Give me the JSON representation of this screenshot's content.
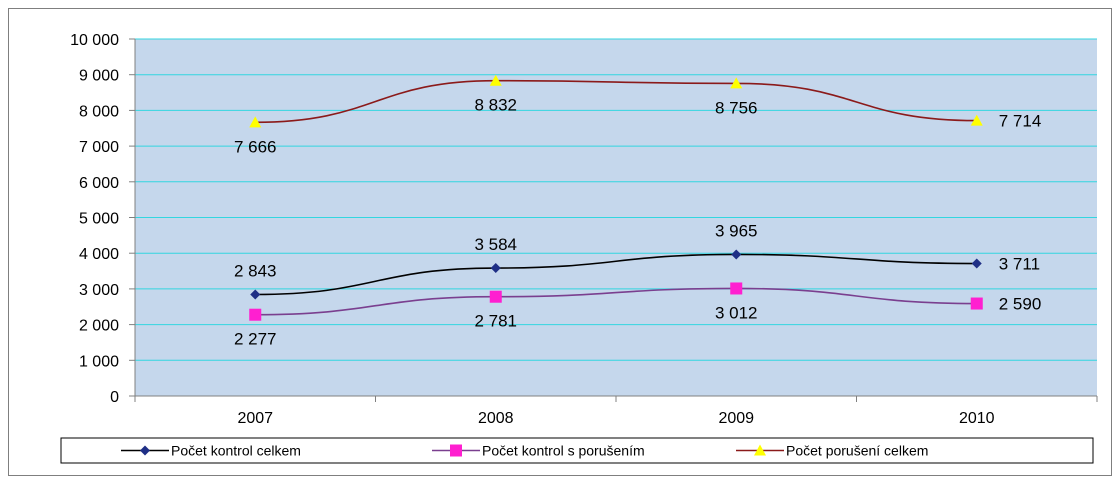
{
  "chart_data": {
    "type": "line",
    "categories": [
      "2007",
      "2008",
      "2009",
      "2010"
    ],
    "ylim": [
      0,
      10000
    ],
    "yticks": [
      0,
      1000,
      2000,
      3000,
      4000,
      5000,
      6000,
      7000,
      8000,
      9000,
      10000
    ],
    "ytick_labels": [
      "0",
      "1 000",
      "2 000",
      "3 000",
      "4 000",
      "5 000",
      "6 000",
      "7 000",
      "8 000",
      "9 000",
      "10 000"
    ],
    "grid": true,
    "legend_position": "bottom",
    "plot_background": "#c5d7ec",
    "grid_color": "#33d6e0",
    "series": [
      {
        "name": "Počet kontrol celkem",
        "values": [
          2843,
          3584,
          3965,
          3711
        ],
        "labels": [
          "2 843",
          "3 584",
          "3 965",
          "3 711"
        ],
        "color": "#000000",
        "marker": "diamond",
        "marker_color": "#1f2f86",
        "label_position": "above"
      },
      {
        "name": "Počet kontrol s porušením",
        "values": [
          2277,
          2781,
          3012,
          2590
        ],
        "labels": [
          "2 277",
          "2 781",
          "3 012",
          "2 590"
        ],
        "color": "#7a3f8f",
        "marker": "square",
        "marker_color": "#ff1fd0",
        "label_position": "below"
      },
      {
        "name": "Počet porušení celkem",
        "values": [
          7666,
          8832,
          8756,
          7714
        ],
        "labels": [
          "7 666",
          "8 832",
          "8 756",
          "7 714"
        ],
        "color": "#8b1a1a",
        "marker": "triangle",
        "marker_color": "#ffff00",
        "label_position": "below"
      }
    ]
  }
}
